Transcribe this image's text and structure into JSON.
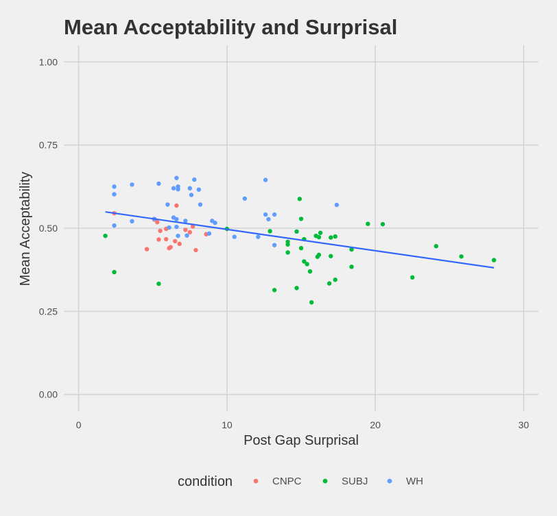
{
  "chart_data": {
    "type": "scatter",
    "title": "Mean Acceptability and Surprisal",
    "xlabel": "Post Gap Surprisal",
    "ylabel": "Mean Acceptability",
    "xlim": [
      -1,
      31
    ],
    "ylim": [
      -0.05,
      1.05
    ],
    "x_ticks": [
      0,
      10,
      20,
      30
    ],
    "x_tick_labels": [
      "0",
      "10",
      "20",
      "30"
    ],
    "y_ticks": [
      0,
      0.25,
      0.5,
      0.75,
      1.0
    ],
    "y_tick_labels": [
      "0.00",
      "0.25",
      "0.50",
      "0.75",
      "1.00"
    ],
    "grid": true,
    "legend": {
      "title": "condition",
      "position": "bottom"
    },
    "series": [
      {
        "name": "CNPC",
        "color": "#F8766D",
        "points": [
          [
            2.4,
            0.545
          ],
          [
            4.6,
            0.437
          ],
          [
            5.1,
            0.526
          ],
          [
            5.3,
            0.518
          ],
          [
            5.4,
            0.466
          ],
          [
            5.5,
            0.492
          ],
          [
            5.9,
            0.498
          ],
          [
            5.9,
            0.467
          ],
          [
            6.1,
            0.44
          ],
          [
            6.2,
            0.443
          ],
          [
            6.5,
            0.461
          ],
          [
            6.6,
            0.568
          ],
          [
            6.8,
            0.453
          ],
          [
            7.2,
            0.495
          ],
          [
            7.5,
            0.488
          ],
          [
            7.7,
            0.505
          ],
          [
            7.9,
            0.434
          ],
          [
            8.6,
            0.482
          ]
        ]
      },
      {
        "name": "SUBJ",
        "color": "#00BA38",
        "points": [
          [
            1.8,
            0.477
          ],
          [
            2.4,
            0.368
          ],
          [
            5.4,
            0.333
          ],
          [
            10.0,
            0.498
          ],
          [
            12.9,
            0.491
          ],
          [
            13.2,
            0.314
          ],
          [
            14.1,
            0.451
          ],
          [
            14.1,
            0.459
          ],
          [
            14.1,
            0.427
          ],
          [
            14.7,
            0.49
          ],
          [
            14.7,
            0.32
          ],
          [
            14.9,
            0.588
          ],
          [
            15.0,
            0.528
          ],
          [
            15.0,
            0.44
          ],
          [
            15.2,
            0.467
          ],
          [
            15.2,
            0.4
          ],
          [
            15.4,
            0.392
          ],
          [
            15.6,
            0.37
          ],
          [
            15.7,
            0.277
          ],
          [
            16.0,
            0.477
          ],
          [
            16.1,
            0.414
          ],
          [
            16.2,
            0.473
          ],
          [
            16.2,
            0.42
          ],
          [
            16.3,
            0.486
          ],
          [
            16.9,
            0.334
          ],
          [
            17.0,
            0.472
          ],
          [
            17.0,
            0.416
          ],
          [
            17.3,
            0.475
          ],
          [
            17.3,
            0.345
          ],
          [
            18.4,
            0.436
          ],
          [
            18.4,
            0.384
          ],
          [
            19.5,
            0.513
          ],
          [
            20.5,
            0.512
          ],
          [
            22.5,
            0.352
          ],
          [
            24.1,
            0.446
          ],
          [
            25.8,
            0.415
          ],
          [
            28.0,
            0.404
          ]
        ]
      },
      {
        "name": "WH",
        "color": "#619CFF",
        "points": [
          [
            2.4,
            0.625
          ],
          [
            2.4,
            0.602
          ],
          [
            2.4,
            0.508
          ],
          [
            3.6,
            0.631
          ],
          [
            3.6,
            0.521
          ],
          [
            5.1,
            0.528
          ],
          [
            5.4,
            0.634
          ],
          [
            6.0,
            0.571
          ],
          [
            6.1,
            0.502
          ],
          [
            6.4,
            0.62
          ],
          [
            6.4,
            0.532
          ],
          [
            6.6,
            0.651
          ],
          [
            6.6,
            0.527
          ],
          [
            6.6,
            0.504
          ],
          [
            6.7,
            0.625
          ],
          [
            6.7,
            0.617
          ],
          [
            6.7,
            0.477
          ],
          [
            7.2,
            0.522
          ],
          [
            7.3,
            0.478
          ],
          [
            7.5,
            0.62
          ],
          [
            7.6,
            0.6
          ],
          [
            7.8,
            0.646
          ],
          [
            8.1,
            0.616
          ],
          [
            8.2,
            0.571
          ],
          [
            8.8,
            0.484
          ],
          [
            9.0,
            0.522
          ],
          [
            9.2,
            0.516
          ],
          [
            10.5,
            0.474
          ],
          [
            11.2,
            0.589
          ],
          [
            12.1,
            0.474
          ],
          [
            12.6,
            0.645
          ],
          [
            12.6,
            0.541
          ],
          [
            12.8,
            0.527
          ],
          [
            13.2,
            0.541
          ],
          [
            13.2,
            0.449
          ],
          [
            17.4,
            0.57
          ]
        ]
      }
    ],
    "trend_line": {
      "color": "#3366FF",
      "points": [
        [
          1.8,
          0.549
        ],
        [
          28.0,
          0.381
        ]
      ]
    }
  }
}
